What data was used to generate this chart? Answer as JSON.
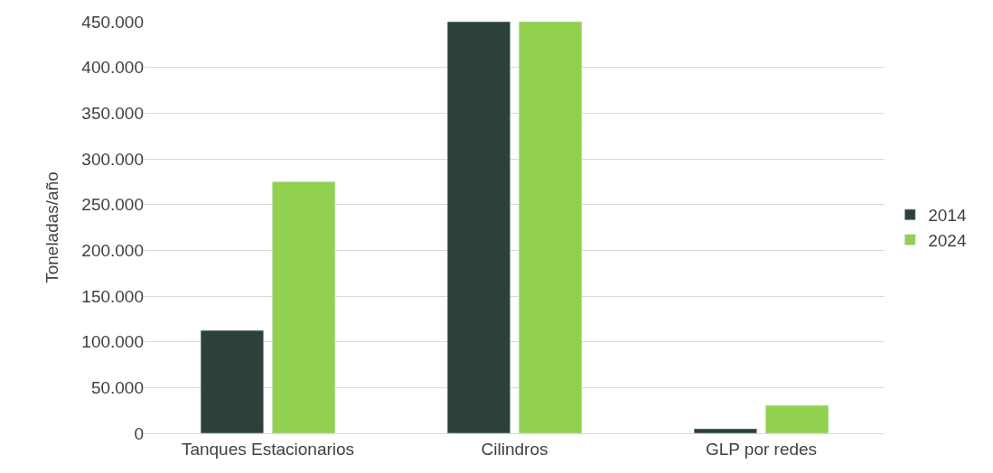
{
  "chart_data": {
    "type": "bar",
    "ylabel": "Toneladas/año",
    "categories": [
      "Tanques Estacionarios",
      "Cilindros",
      "GLP por redes"
    ],
    "series": [
      {
        "name": "2014",
        "color": "#2c4238",
        "values": [
          112500,
          450000,
          5000
        ]
      },
      {
        "name": "2024",
        "color": "#92d050",
        "values": [
          275000,
          450000,
          30500
        ]
      }
    ],
    "ylim": [
      0,
      450000
    ],
    "yticks": [
      {
        "value": 0,
        "label": "0"
      },
      {
        "value": 50000,
        "label": "50.000"
      },
      {
        "value": 100000,
        "label": "100.000"
      },
      {
        "value": 150000,
        "label": "150.000"
      },
      {
        "value": 200000,
        "label": "200.000"
      },
      {
        "value": 250000,
        "label": "250.000"
      },
      {
        "value": 300000,
        "label": "300.000"
      },
      {
        "value": 350000,
        "label": "350.000"
      },
      {
        "value": 400000,
        "label": "400.000"
      },
      {
        "value": 450000,
        "label": "450.000"
      }
    ],
    "grid": "y",
    "legend": "right"
  }
}
